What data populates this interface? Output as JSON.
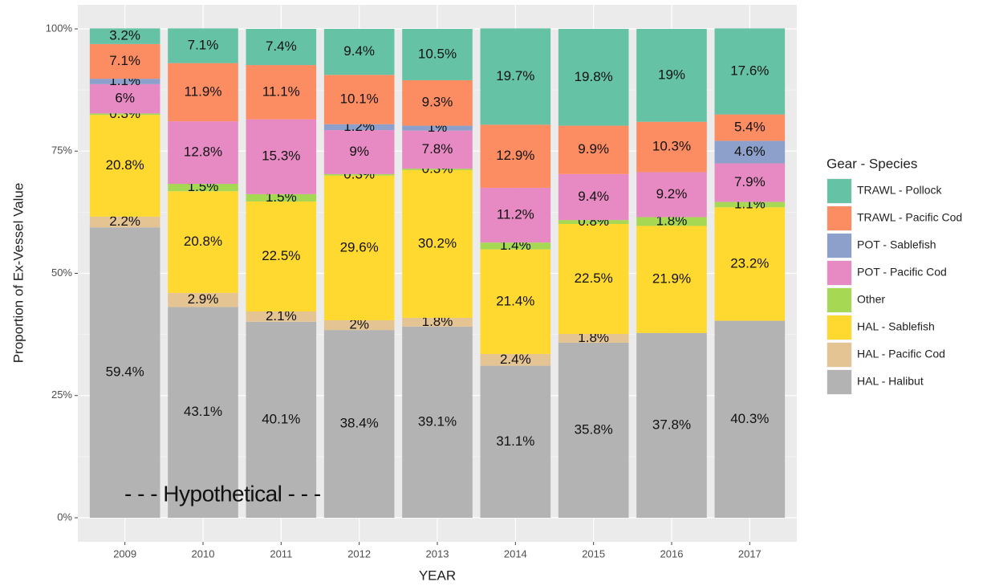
{
  "chart_data": {
    "type": "stacked_bar",
    "x_label": "YEAR",
    "y_label": "Proportion of Ex-Vessel Value",
    "legend_title": "Gear - Species",
    "legend_position": "right",
    "annotation": "- - - Hypothetical - - -",
    "categories": [
      "2009",
      "2010",
      "2011",
      "2012",
      "2013",
      "2014",
      "2015",
      "2016",
      "2017"
    ],
    "ylim": [
      0,
      100
    ],
    "yticks": [
      {
        "value": 0,
        "label": "0%"
      },
      {
        "value": 25,
        "label": "25%"
      },
      {
        "value": 50,
        "label": "50%"
      },
      {
        "value": 75,
        "label": "75%"
      },
      {
        "value": 100,
        "label": "100%"
      }
    ],
    "grid": true,
    "series": [
      {
        "name": "HAL - Halibut",
        "color": "#b3b3b3",
        "values": [
          59.4,
          43.1,
          40.1,
          38.4,
          39.1,
          31.1,
          35.8,
          37.8,
          40.3
        ],
        "value_labels": [
          "59.4%",
          "43.1%",
          "40.1%",
          "38.4%",
          "39.1%",
          "31.1%",
          "35.8%",
          "37.8%",
          "40.3%"
        ]
      },
      {
        "name": "HAL - Pacific Cod",
        "color": "#e5c494",
        "values": [
          2.2,
          2.9,
          2.1,
          2,
          1.8,
          2.4,
          1.8,
          0,
          0
        ],
        "value_labels": [
          "2.2%",
          "2.9%",
          "2.1%",
          "2%",
          "1.8%",
          "2.4%",
          "1.8%",
          null,
          null
        ]
      },
      {
        "name": "HAL - Sablefish",
        "color": "#ffd92f",
        "values": [
          20.8,
          20.8,
          22.5,
          29.6,
          30.2,
          21.4,
          22.5,
          21.9,
          23.2
        ],
        "value_labels": [
          "20.8%",
          "20.8%",
          "22.5%",
          "29.6%",
          "30.2%",
          "21.4%",
          "22.5%",
          "21.9%",
          "23.2%"
        ]
      },
      {
        "name": "Other",
        "color": "#a6d854",
        "values": [
          0.3,
          1.5,
          1.5,
          0.3,
          0.3,
          1.4,
          0.8,
          1.8,
          1.1
        ],
        "value_labels": [
          "0.3%",
          "1.5%",
          "1.5%",
          "0.3%",
          "0.3%",
          "1.4%",
          "0.8%",
          "1.8%",
          "1.1%"
        ]
      },
      {
        "name": "POT - Pacific Cod",
        "color": "#e78ac3",
        "values": [
          6,
          12.8,
          15.3,
          9,
          7.8,
          11.2,
          9.4,
          9.2,
          7.9
        ],
        "value_labels": [
          "6%",
          "12.8%",
          "15.3%",
          "9%",
          "7.8%",
          "11.2%",
          "9.4%",
          "9.2%",
          "7.9%"
        ]
      },
      {
        "name": "POT - Sablefish",
        "color": "#8da0cb",
        "values": [
          1.1,
          0,
          0,
          1.2,
          1,
          0,
          0,
          0,
          4.6
        ],
        "value_labels": [
          "1.1%",
          null,
          null,
          "1.2%",
          "1%",
          null,
          null,
          null,
          "4.6%"
        ]
      },
      {
        "name": "TRAWL - Pacific Cod",
        "color": "#fc8d62",
        "values": [
          7.1,
          11.9,
          11.1,
          10.1,
          9.3,
          12.9,
          9.9,
          10.3,
          5.4
        ],
        "value_labels": [
          "7.1%",
          "11.9%",
          "11.1%",
          "10.1%",
          "9.3%",
          "12.9%",
          "9.9%",
          "10.3%",
          "5.4%"
        ]
      },
      {
        "name": "TRAWL - Pollock",
        "color": "#66c2a5",
        "values": [
          3.2,
          7.1,
          7.4,
          9.4,
          10.5,
          19.7,
          19.8,
          19,
          17.6
        ],
        "value_labels": [
          "3.2%",
          "7.1%",
          "7.4%",
          "9.4%",
          "10.5%",
          "19.7%",
          "19.8%",
          "19%",
          "17.6%"
        ]
      }
    ]
  }
}
